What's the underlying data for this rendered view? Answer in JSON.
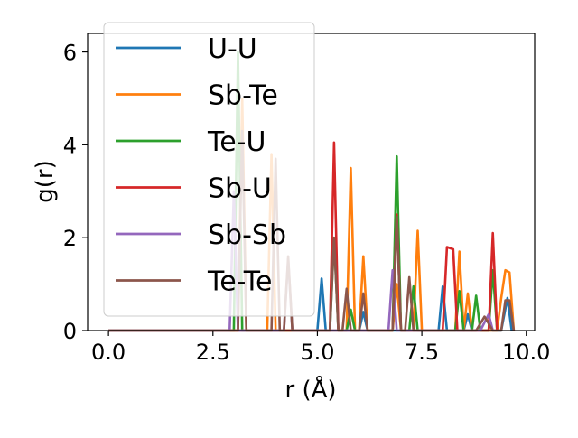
{
  "chart_data": {
    "type": "line",
    "title": "",
    "xlabel": "r (Å)",
    "ylabel": "g(r)",
    "xlim": [
      -0.5,
      10.2
    ],
    "ylim": [
      0,
      6.4
    ],
    "xticks": [
      "0.0",
      "2.5",
      "5.0",
      "7.5",
      "10.0"
    ],
    "xtick_values": [
      0,
      2.5,
      5.0,
      7.5,
      10.0
    ],
    "yticks": [
      "0",
      "2",
      "4",
      "6"
    ],
    "ytick_values": [
      0,
      2,
      4,
      6
    ],
    "grid": false,
    "legend_position": "upper-left",
    "series": [
      {
        "name": "U-U",
        "color": "#1f77b4",
        "points": [
          [
            0,
            0
          ],
          [
            5.0,
            0
          ],
          [
            5.1,
            1.12
          ],
          [
            5.2,
            0
          ],
          [
            6.0,
            0
          ],
          [
            6.1,
            0.4
          ],
          [
            6.2,
            0
          ],
          [
            7.9,
            0
          ],
          [
            8.0,
            0.95
          ],
          [
            8.1,
            0
          ],
          [
            8.5,
            0
          ],
          [
            8.6,
            0.35
          ],
          [
            8.7,
            0
          ],
          [
            9.4,
            0
          ],
          [
            9.55,
            0.7
          ],
          [
            9.65,
            0
          ]
        ]
      },
      {
        "name": "Sb-Te",
        "color": "#ff7f0e",
        "points": [
          [
            0,
            0
          ],
          [
            3.1,
            0
          ],
          [
            3.2,
            5.0
          ],
          [
            3.3,
            0
          ],
          [
            3.8,
            0
          ],
          [
            3.9,
            3.8
          ],
          [
            4.0,
            0
          ],
          [
            5.7,
            0
          ],
          [
            5.8,
            3.5
          ],
          [
            5.9,
            0
          ],
          [
            6.0,
            0
          ],
          [
            6.1,
            1.6
          ],
          [
            6.2,
            0
          ],
          [
            6.8,
            0
          ],
          [
            6.9,
            1.0
          ],
          [
            7.0,
            0
          ],
          [
            7.3,
            0
          ],
          [
            7.4,
            2.15
          ],
          [
            7.5,
            0
          ],
          [
            8.3,
            0
          ],
          [
            8.4,
            1.7
          ],
          [
            8.5,
            0
          ],
          [
            8.6,
            0.8
          ],
          [
            8.7,
            0
          ],
          [
            9.3,
            0
          ],
          [
            9.4,
            0.7
          ],
          [
            9.5,
            1.3
          ],
          [
            9.6,
            1.25
          ],
          [
            9.7,
            0
          ]
        ]
      },
      {
        "name": "Te-U",
        "color": "#2ca02c",
        "points": [
          [
            0,
            0
          ],
          [
            3.0,
            0
          ],
          [
            3.1,
            6.0
          ],
          [
            3.2,
            0
          ],
          [
            5.3,
            0
          ],
          [
            5.4,
            2.0
          ],
          [
            5.5,
            0
          ],
          [
            5.7,
            0
          ],
          [
            5.8,
            0.45
          ],
          [
            5.9,
            0
          ],
          [
            6.8,
            0
          ],
          [
            6.9,
            3.75
          ],
          [
            7.0,
            0
          ],
          [
            7.2,
            0
          ],
          [
            7.3,
            0.95
          ],
          [
            7.4,
            0
          ],
          [
            8.3,
            0
          ],
          [
            8.4,
            0.85
          ],
          [
            8.5,
            0
          ],
          [
            8.7,
            0
          ],
          [
            8.8,
            0.75
          ],
          [
            8.9,
            0
          ],
          [
            9.1,
            0
          ],
          [
            9.2,
            1.3
          ],
          [
            9.3,
            0
          ]
        ]
      },
      {
        "name": "Sb-U",
        "color": "#d62728",
        "points": [
          [
            0,
            0
          ],
          [
            5.3,
            0
          ],
          [
            5.4,
            4.05
          ],
          [
            5.5,
            0
          ],
          [
            6.8,
            0
          ],
          [
            6.9,
            2.5
          ],
          [
            7.0,
            0
          ],
          [
            8.0,
            0
          ],
          [
            8.1,
            1.8
          ],
          [
            8.25,
            1.75
          ],
          [
            8.35,
            0
          ],
          [
            9.1,
            0
          ],
          [
            9.2,
            2.1
          ],
          [
            9.3,
            0
          ]
        ]
      },
      {
        "name": "Sb-Sb",
        "color": "#9467bd",
        "points": [
          [
            0,
            0
          ],
          [
            2.9,
            0
          ],
          [
            3.0,
            3.0
          ],
          [
            3.1,
            0
          ],
          [
            4.2,
            0
          ],
          [
            4.3,
            1.55
          ],
          [
            4.4,
            0
          ],
          [
            6.7,
            0
          ],
          [
            6.8,
            1.3
          ],
          [
            6.9,
            0
          ],
          [
            8.9,
            0
          ],
          [
            9.1,
            0.35
          ],
          [
            9.2,
            0
          ]
        ]
      },
      {
        "name": "Te-Te",
        "color": "#8c564b",
        "points": [
          [
            0,
            0
          ],
          [
            3.1,
            0
          ],
          [
            3.2,
            4.3
          ],
          [
            3.3,
            0
          ],
          [
            3.9,
            0
          ],
          [
            4.0,
            3.7
          ],
          [
            4.1,
            0
          ],
          [
            4.2,
            0
          ],
          [
            4.3,
            1.6
          ],
          [
            4.4,
            0
          ],
          [
            5.3,
            0
          ],
          [
            5.4,
            2.0
          ],
          [
            5.5,
            0
          ],
          [
            5.6,
            0
          ],
          [
            5.7,
            0.9
          ],
          [
            5.8,
            0
          ],
          [
            6.0,
            0
          ],
          [
            6.1,
            0.8
          ],
          [
            6.2,
            0
          ],
          [
            6.8,
            0
          ],
          [
            6.9,
            2.45
          ],
          [
            7.0,
            0
          ],
          [
            7.1,
            0
          ],
          [
            7.2,
            1.15
          ],
          [
            7.3,
            0
          ],
          [
            8.8,
            0
          ],
          [
            9.0,
            0.3
          ],
          [
            9.2,
            0
          ],
          [
            9.4,
            0
          ],
          [
            9.5,
            0.65
          ],
          [
            9.6,
            0.65
          ],
          [
            9.7,
            0
          ]
        ]
      }
    ]
  }
}
